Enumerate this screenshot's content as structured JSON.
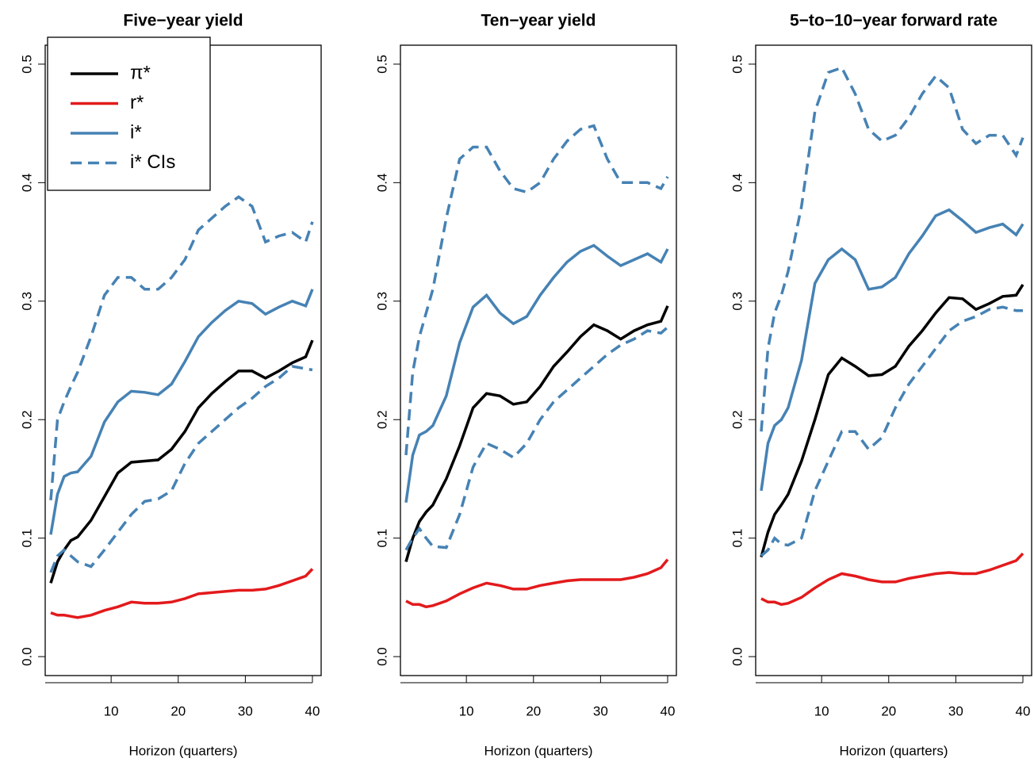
{
  "chart_data": [
    {
      "type": "line",
      "title": "Five−year yield",
      "xlabel": "Horizon (quarters)",
      "x": [
        1,
        2,
        3,
        4,
        5,
        7,
        9,
        11,
        13,
        15,
        17,
        19,
        21,
        23,
        25,
        27,
        29,
        31,
        33,
        35,
        37,
        39,
        40
      ],
      "xlim": [
        0.17,
        41.3
      ],
      "xticks": [
        0,
        10,
        20,
        30,
        40
      ],
      "ylim": [
        -0.016,
        0.516
      ],
      "yticks": [
        {
          "value": 0,
          "label": "0.0"
        },
        0.1,
        0.2,
        0.3,
        0.4,
        0.5
      ],
      "legend": "topleft",
      "series": [
        {
          "name": "π*",
          "color": "#000000",
          "values": [
            0.062,
            0.08,
            0.09,
            0.098,
            0.101,
            0.115,
            0.135,
            0.155,
            0.164,
            0.165,
            0.166,
            0.175,
            0.19,
            0.21,
            0.222,
            0.232,
            0.241,
            0.241,
            0.235,
            0.241,
            0.248,
            0.253,
            0.267
          ]
        },
        {
          "name": "r*",
          "color": "#e31a1c",
          "values": [
            0.037,
            0.035,
            0.035,
            0.034,
            0.033,
            0.035,
            0.039,
            0.042,
            0.046,
            0.045,
            0.045,
            0.046,
            0.049,
            0.053,
            0.054,
            0.055,
            0.056,
            0.056,
            0.057,
            0.06,
            0.064,
            0.068,
            0.074
          ]
        },
        {
          "name": "i*",
          "color": "#4682b4",
          "values": [
            0.103,
            0.137,
            0.152,
            0.155,
            0.156,
            0.169,
            0.198,
            0.215,
            0.224,
            0.223,
            0.221,
            0.23,
            0.249,
            0.27,
            0.282,
            0.292,
            0.3,
            0.298,
            0.289,
            0.295,
            0.3,
            0.296,
            0.31
          ]
        },
        {
          "name": "i* CIs",
          "color": "#4682b4",
          "dashed": true,
          "upper": [
            0.132,
            0.2,
            0.215,
            0.228,
            0.24,
            0.27,
            0.305,
            0.32,
            0.32,
            0.31,
            0.31,
            0.32,
            0.335,
            0.36,
            0.37,
            0.38,
            0.388,
            0.38,
            0.35,
            0.355,
            0.358,
            0.35,
            0.367
          ],
          "lower": [
            0.071,
            0.085,
            0.09,
            0.085,
            0.08,
            0.076,
            0.09,
            0.105,
            0.12,
            0.131,
            0.133,
            0.14,
            0.163,
            0.18,
            0.19,
            0.2,
            0.21,
            0.218,
            0.228,
            0.235,
            0.245,
            0.243,
            0.242
          ]
        }
      ]
    },
    {
      "type": "line",
      "title": "Ten−year yield",
      "xlabel": "Horizon (quarters)",
      "x": [
        1,
        2,
        3,
        4,
        5,
        7,
        9,
        11,
        13,
        15,
        17,
        19,
        21,
        23,
        25,
        27,
        29,
        31,
        33,
        35,
        37,
        39,
        40
      ],
      "xlim": [
        0.17,
        41.3
      ],
      "xticks": [
        0,
        10,
        20,
        30,
        40
      ],
      "ylim": [
        -0.016,
        0.516
      ],
      "yticks": [
        {
          "value": 0,
          "label": "0.0"
        },
        0.1,
        0.2,
        0.3,
        0.4,
        0.5
      ],
      "series": [
        {
          "name": "π*",
          "color": "#000000",
          "values": [
            0.08,
            0.1,
            0.114,
            0.122,
            0.128,
            0.15,
            0.178,
            0.21,
            0.222,
            0.22,
            0.213,
            0.215,
            0.228,
            0.245,
            0.257,
            0.27,
            0.28,
            0.275,
            0.268,
            0.275,
            0.28,
            0.283,
            0.296
          ]
        },
        {
          "name": "r*",
          "color": "#e31a1c",
          "values": [
            0.047,
            0.044,
            0.044,
            0.042,
            0.043,
            0.047,
            0.053,
            0.058,
            0.062,
            0.06,
            0.057,
            0.057,
            0.06,
            0.062,
            0.064,
            0.065,
            0.065,
            0.065,
            0.065,
            0.067,
            0.07,
            0.075,
            0.082
          ]
        },
        {
          "name": "i*",
          "color": "#4682b4",
          "values": [
            0.13,
            0.17,
            0.187,
            0.19,
            0.195,
            0.22,
            0.265,
            0.295,
            0.305,
            0.29,
            0.281,
            0.287,
            0.305,
            0.32,
            0.333,
            0.342,
            0.347,
            0.338,
            0.33,
            0.335,
            0.34,
            0.333,
            0.344
          ]
        },
        {
          "name": "i* CIs",
          "color": "#4682b4",
          "dashed": true,
          "upper": [
            0.17,
            0.24,
            0.27,
            0.29,
            0.31,
            0.37,
            0.42,
            0.43,
            0.43,
            0.41,
            0.395,
            0.392,
            0.4,
            0.42,
            0.435,
            0.445,
            0.448,
            0.42,
            0.4,
            0.4,
            0.4,
            0.395,
            0.405
          ],
          "lower": [
            0.09,
            0.1,
            0.108,
            0.1,
            0.093,
            0.092,
            0.12,
            0.16,
            0.18,
            0.175,
            0.168,
            0.18,
            0.2,
            0.215,
            0.225,
            0.235,
            0.245,
            0.255,
            0.263,
            0.268,
            0.275,
            0.273,
            0.278
          ]
        }
      ]
    },
    {
      "type": "line",
      "title": "5−to−10−year forward rate",
      "xlabel": "Horizon (quarters)",
      "x": [
        1,
        2,
        3,
        4,
        5,
        7,
        9,
        11,
        13,
        15,
        17,
        19,
        21,
        23,
        25,
        27,
        29,
        31,
        33,
        35,
        37,
        39,
        40
      ],
      "xlim": [
        0.17,
        41.3
      ],
      "xticks": [
        0,
        10,
        20,
        30,
        40
      ],
      "ylim": [
        -0.016,
        0.516
      ],
      "yticks": [
        {
          "value": 0,
          "label": "0.0"
        },
        0.1,
        0.2,
        0.3,
        0.4,
        0.5
      ],
      "series": [
        {
          "name": "π*",
          "color": "#000000",
          "values": [
            0.084,
            0.105,
            0.12,
            0.128,
            0.137,
            0.165,
            0.2,
            0.238,
            0.252,
            0.245,
            0.237,
            0.238,
            0.245,
            0.262,
            0.275,
            0.29,
            0.303,
            0.302,
            0.293,
            0.298,
            0.304,
            0.305,
            0.314
          ]
        },
        {
          "name": "r*",
          "color": "#e31a1c",
          "values": [
            0.049,
            0.046,
            0.046,
            0.044,
            0.045,
            0.05,
            0.058,
            0.065,
            0.07,
            0.068,
            0.065,
            0.063,
            0.063,
            0.066,
            0.068,
            0.07,
            0.071,
            0.07,
            0.07,
            0.073,
            0.077,
            0.081,
            0.087
          ]
        },
        {
          "name": "i*",
          "color": "#4682b4",
          "values": [
            0.14,
            0.18,
            0.195,
            0.2,
            0.21,
            0.25,
            0.315,
            0.335,
            0.344,
            0.335,
            0.31,
            0.312,
            0.32,
            0.34,
            0.355,
            0.372,
            0.377,
            0.368,
            0.358,
            0.362,
            0.365,
            0.356,
            0.365
          ]
        },
        {
          "name": "i* CIs",
          "color": "#4682b4",
          "dashed": true,
          "upper": [
            0.19,
            0.26,
            0.29,
            0.305,
            0.325,
            0.38,
            0.46,
            0.493,
            0.497,
            0.475,
            0.445,
            0.435,
            0.44,
            0.455,
            0.475,
            0.49,
            0.48,
            0.445,
            0.433,
            0.44,
            0.44,
            0.423,
            0.438
          ],
          "lower": [
            0.085,
            0.09,
            0.1,
            0.095,
            0.094,
            0.1,
            0.14,
            0.165,
            0.19,
            0.19,
            0.175,
            0.185,
            0.21,
            0.23,
            0.245,
            0.26,
            0.275,
            0.283,
            0.287,
            0.293,
            0.295,
            0.292,
            0.292
          ]
        }
      ]
    }
  ]
}
